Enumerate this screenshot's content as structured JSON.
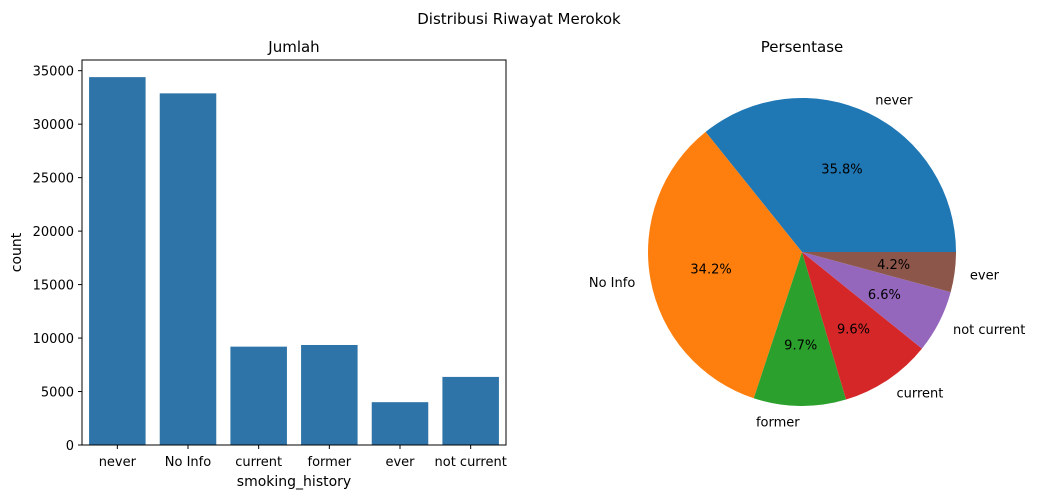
{
  "figure": {
    "suptitle": "Distribusi Riwayat Merokok"
  },
  "chart_data": [
    {
      "type": "bar",
      "title": "Jumlah",
      "xlabel": "smoking_history",
      "ylabel": "count",
      "categories": [
        "never",
        "No Info",
        "current",
        "former",
        "ever",
        "not current"
      ],
      "values": [
        34398,
        32881,
        9197,
        9352,
        4004,
        6367
      ],
      "ylim": [
        0,
        36000
      ],
      "yticks": [
        0,
        5000,
        10000,
        15000,
        20000,
        25000,
        30000,
        35000
      ],
      "ytick_labels": [
        "0",
        "5000",
        "10000",
        "15000",
        "20000",
        "25000",
        "30000",
        "35000"
      ],
      "color": "#2f74a8",
      "grid": false
    },
    {
      "type": "pie",
      "title": "Persentase",
      "labels": [
        "never",
        "No Info",
        "former",
        "current",
        "not current",
        "ever"
      ],
      "values": [
        35.8,
        34.2,
        9.7,
        9.6,
        6.6,
        4.2
      ],
      "pct_labels": [
        "35.8%",
        "34.2%",
        "9.7%",
        "9.6%",
        "6.6%",
        "4.2%"
      ],
      "colors": [
        "#1f77b4",
        "#ff7f0e",
        "#2ca02c",
        "#d62728",
        "#9467bd",
        "#8c564b"
      ],
      "startangle": 0,
      "direction": "counterclockwise"
    }
  ]
}
